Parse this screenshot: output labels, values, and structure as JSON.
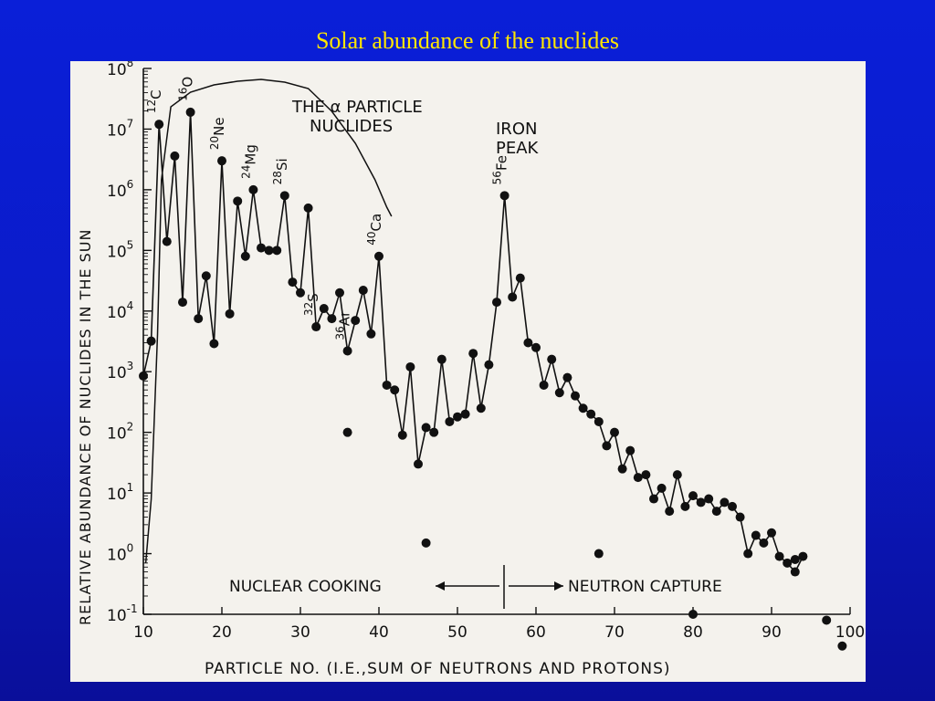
{
  "slide": {
    "title": "Solar abundance of the nuclides"
  },
  "chart_data": {
    "type": "line",
    "title": "",
    "xlabel": "PARTICLE NO. (I.E.,SUM OF NEUTRONS AND PROTONS)",
    "ylabel": "RELATIVE ABUNDANCE OF NUCLIDES IN THE SUN",
    "xlim": [
      10,
      100
    ],
    "ylim": [
      0.1,
      100000000
    ],
    "yscale": "log",
    "x_ticks": [
      "10",
      "20",
      "30",
      "40",
      "50",
      "60",
      "70",
      "80",
      "90",
      "100"
    ],
    "y_ticks": [
      {
        "base": "10",
        "exp": "8"
      },
      {
        "base": "10",
        "exp": "7"
      },
      {
        "base": "10",
        "exp": "6"
      },
      {
        "base": "10",
        "exp": "5"
      },
      {
        "base": "10",
        "exp": "4"
      },
      {
        "base": "10",
        "exp": "3"
      },
      {
        "base": "10",
        "exp": "2"
      },
      {
        "base": "10",
        "exp": "1"
      },
      {
        "base": "10",
        "exp": "0"
      },
      {
        "base": "10",
        "exp": "-1"
      }
    ],
    "connected_points": [
      [
        10,
        850
      ],
      [
        11,
        3200
      ],
      [
        12,
        12000000
      ],
      [
        13,
        140000
      ],
      [
        14,
        3600000
      ],
      [
        15,
        14000
      ],
      [
        16,
        19000000
      ],
      [
        17,
        7500
      ],
      [
        18,
        38000
      ],
      [
        19,
        2900
      ],
      [
        20,
        3000000
      ],
      [
        21,
        9000
      ],
      [
        22,
        650000
      ],
      [
        23,
        80000
      ],
      [
        24,
        1000000
      ],
      [
        25,
        110000
      ],
      [
        26,
        100000
      ],
      [
        27,
        100000
      ],
      [
        28,
        800000
      ],
      [
        29,
        30000
      ],
      [
        30,
        20000
      ],
      [
        31,
        500000
      ],
      [
        32,
        5500
      ],
      [
        33,
        11000
      ],
      [
        34,
        7500
      ],
      [
        35,
        20000
      ],
      [
        36,
        2200
      ],
      [
        37,
        7000
      ],
      [
        38,
        22000
      ],
      [
        39,
        4200
      ],
      [
        40,
        80000
      ],
      [
        41,
        600
      ],
      [
        42,
        500
      ],
      [
        43,
        90
      ],
      [
        44,
        1200
      ],
      [
        45,
        30
      ],
      [
        46,
        120
      ],
      [
        47,
        100
      ],
      [
        48,
        1600
      ],
      [
        49,
        150
      ],
      [
        50,
        180
      ],
      [
        51,
        200
      ],
      [
        52,
        2000
      ],
      [
        53,
        250
      ],
      [
        54,
        1300
      ],
      [
        55,
        14000
      ],
      [
        56,
        800000
      ],
      [
        57,
        17000
      ],
      [
        58,
        35000
      ],
      [
        59,
        3000
      ],
      [
        60,
        2500
      ],
      [
        61,
        600
      ],
      [
        62,
        1600
      ],
      [
        63,
        450
      ],
      [
        64,
        800
      ],
      [
        65,
        400
      ],
      [
        66,
        250
      ],
      [
        67,
        200
      ],
      [
        68,
        150
      ],
      [
        69,
        60
      ],
      [
        70,
        100
      ],
      [
        71,
        25
      ],
      [
        72,
        50
      ],
      [
        73,
        18
      ],
      [
        74,
        20
      ],
      [
        75,
        8
      ],
      [
        76,
        12
      ],
      [
        77,
        5
      ],
      [
        78,
        20
      ],
      [
        79,
        6
      ],
      [
        80,
        9
      ],
      [
        81,
        7
      ],
      [
        82,
        8
      ],
      [
        83,
        5
      ],
      [
        84,
        7
      ],
      [
        85,
        6
      ],
      [
        86,
        4
      ],
      [
        87,
        1
      ],
      [
        88,
        2
      ],
      [
        89,
        1.5
      ],
      [
        90,
        2.2
      ],
      [
        91,
        0.9
      ],
      [
        92,
        0.7
      ],
      [
        93,
        0.5
      ],
      [
        94,
        0.9
      ]
    ],
    "isolated_points": [
      [
        36,
        100
      ],
      [
        46,
        1.5
      ],
      [
        68,
        1
      ],
      [
        80,
        0.1
      ],
      [
        93,
        0.8
      ],
      [
        97,
        0.08
      ],
      [
        99,
        0.03
      ]
    ],
    "annotations": {
      "alpha_heading": "THE α PARTICLE",
      "alpha_heading_2": "NUCLIDES",
      "iron_heading": "IRON",
      "iron_heading_2": "PEAK",
      "nuclear_cooking": "NUCLEAR COOKING",
      "neutron_capture": "NEUTRON CAPTURE"
    },
    "nuclide_labels": [
      {
        "x": 12,
        "mass": "12",
        "sym": "C"
      },
      {
        "x": 16,
        "mass": "16",
        "sym": "O"
      },
      {
        "x": 20,
        "mass": "20",
        "sym": "Ne"
      },
      {
        "x": 24,
        "mass": "24",
        "sym": "Mg"
      },
      {
        "x": 28,
        "mass": "28",
        "sym": "Si"
      },
      {
        "x": 32,
        "mass": "32",
        "sym": "S"
      },
      {
        "x": 36,
        "mass": "36",
        "sym": "Ar"
      },
      {
        "x": 40,
        "mass": "40",
        "sym": "Ca"
      },
      {
        "x": 56,
        "mass": "56",
        "sym": "Fe"
      }
    ],
    "grid": false,
    "legend": "none"
  }
}
